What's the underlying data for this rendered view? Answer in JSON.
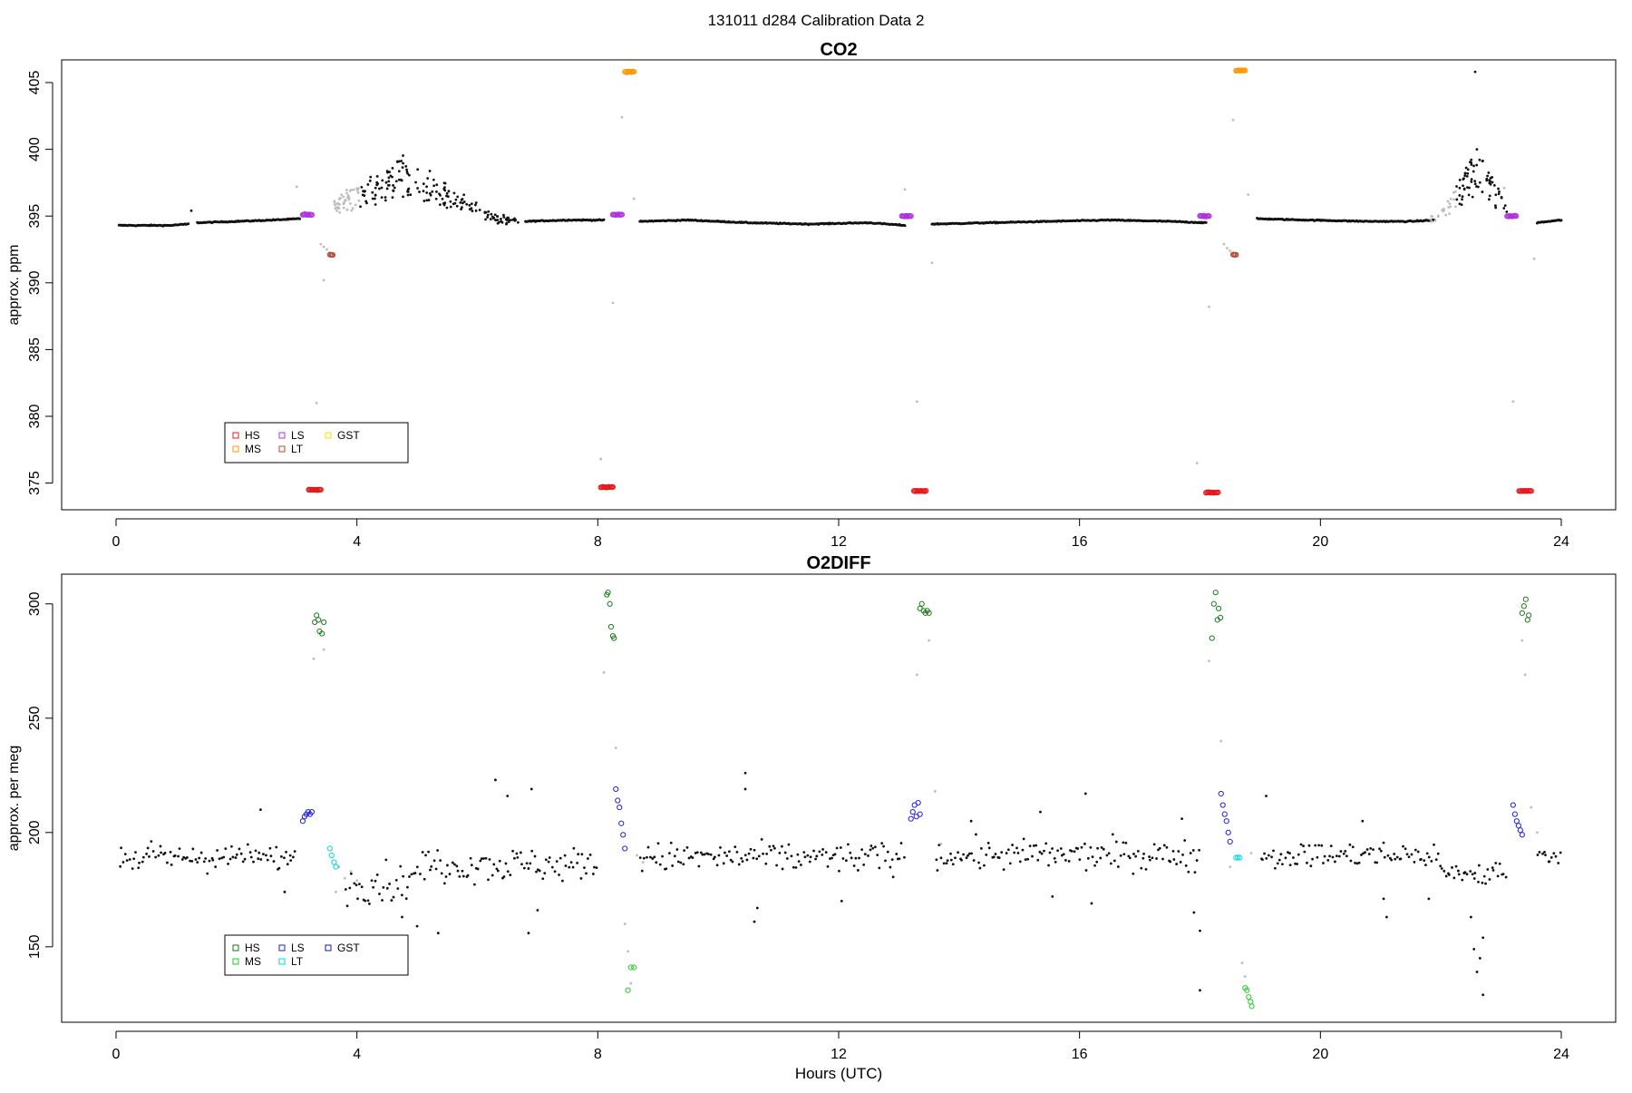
{
  "figure_title": "131011   d284   Calibration Data 2",
  "colors": {
    "HS": "#e41a1c",
    "MS": "#ff9900",
    "LS": "#b030e0",
    "LT": "#b84a3a",
    "GST": "#ffdd00",
    "O2_HS": "#1a7a1a",
    "O2_MS": "#22cc22",
    "O2_LS": "#1f1fdd",
    "O2_LT": "#00d8d8",
    "O2_GST": "#1a1aaa",
    "sample": "#111111",
    "flagged": "#bdbdbd"
  },
  "chart_data": [
    {
      "id": "co2",
      "type": "scatter",
      "title": "CO2",
      "xlabel": "",
      "ylabel": "approx. ppm",
      "xlim": [
        0,
        24
      ],
      "ylim": [
        373,
        406
      ],
      "xticks": [
        0,
        4,
        8,
        12,
        16,
        20,
        24
      ],
      "yticks": [
        375,
        380,
        385,
        390,
        395,
        400,
        405
      ],
      "grid": false,
      "legend": {
        "placement": "bottom-left",
        "entries": [
          {
            "label": "HS",
            "key": "HS"
          },
          {
            "label": "MS",
            "key": "MS"
          },
          {
            "label": "LS",
            "key": "LS"
          },
          {
            "label": "LT",
            "key": "LT"
          },
          {
            "label": "GST",
            "key": "GST"
          }
        ]
      },
      "baseline_segments": [
        {
          "x": [
            0.05,
            0.5,
            0.9,
            1.2
          ],
          "y": [
            394.3,
            394.3,
            394.3,
            394.4
          ]
        },
        {
          "x": [
            1.35,
            2.0,
            2.6,
            3.05
          ],
          "y": [
            394.5,
            394.6,
            394.7,
            394.8
          ]
        },
        {
          "x": [
            6.8,
            7.5,
            8.1
          ],
          "y": [
            394.6,
            394.7,
            394.7
          ]
        },
        {
          "x": [
            8.7,
            9.5,
            10.5,
            11.5,
            12.5,
            13.1
          ],
          "y": [
            394.6,
            394.7,
            394.5,
            394.4,
            394.5,
            394.3
          ]
        },
        {
          "x": [
            13.55,
            14.5,
            15.5,
            16.5,
            17.5,
            18.1
          ],
          "y": [
            394.4,
            394.5,
            394.6,
            394.7,
            394.6,
            394.5
          ]
        },
        {
          "x": [
            18.95,
            19.8,
            20.8,
            21.5,
            21.9
          ],
          "y": [
            394.8,
            394.7,
            394.6,
            394.6,
            394.7
          ]
        },
        {
          "x": [
            23.6,
            24.0
          ],
          "y": [
            394.5,
            394.7
          ]
        }
      ],
      "scatter_regions": [
        {
          "x0": 3.6,
          "x1": 6.7,
          "kind": "excursion",
          "peak_x": 4.75,
          "peak_y": 399.5,
          "base": 394.7
        },
        {
          "x0": 21.8,
          "x1": 23.1,
          "kind": "excursion",
          "peak_x": 22.6,
          "peak_y": 400.0,
          "base": 394.8
        },
        {
          "x0": 1.25,
          "x1": 1.3,
          "kind": "spike",
          "peak_x": 1.25,
          "peak_y": 395.4,
          "base": 394.5
        },
        {
          "x0": 22.55,
          "x1": 22.6,
          "kind": "spike",
          "peak_x": 22.57,
          "peak_y": 405.8,
          "base": 394.8
        }
      ],
      "calibrations": [
        {
          "key": "HS",
          "x0": 3.2,
          "x1": 3.4,
          "y": 374.5
        },
        {
          "key": "HS",
          "x0": 8.05,
          "x1": 8.25,
          "y": 374.7
        },
        {
          "key": "HS",
          "x0": 13.25,
          "x1": 13.45,
          "y": 374.4
        },
        {
          "key": "HS",
          "x0": 18.1,
          "x1": 18.3,
          "y": 374.3
        },
        {
          "key": "HS",
          "x0": 23.3,
          "x1": 23.5,
          "y": 374.4
        },
        {
          "key": "MS",
          "x0": 8.45,
          "x1": 8.6,
          "y": 405.8
        },
        {
          "key": "MS",
          "x0": 18.6,
          "x1": 18.75,
          "y": 405.9
        },
        {
          "key": "LS",
          "x0": 3.1,
          "x1": 3.25,
          "y": 395.1
        },
        {
          "key": "LS",
          "x0": 8.25,
          "x1": 8.4,
          "y": 395.1
        },
        {
          "key": "LS",
          "x0": 13.05,
          "x1": 13.2,
          "y": 395.0
        },
        {
          "key": "LS",
          "x0": 18.0,
          "x1": 18.15,
          "y": 395.0
        },
        {
          "key": "LS",
          "x0": 23.1,
          "x1": 23.25,
          "y": 395.0
        },
        {
          "key": "LT",
          "x0": 3.55,
          "x1": 3.6,
          "y": 392.1
        },
        {
          "key": "LT",
          "x0": 18.55,
          "x1": 18.6,
          "y": 392.1
        }
      ],
      "flagged": [
        {
          "x": 3.0,
          "y": 397.2
        },
        {
          "x": 3.33,
          "y": 381.0
        },
        {
          "x": 3.45,
          "y": 390.2
        },
        {
          "x": 3.4,
          "y": 392.9
        },
        {
          "x": 3.45,
          "y": 392.7
        },
        {
          "x": 3.5,
          "y": 392.5
        },
        {
          "x": 8.05,
          "y": 376.8
        },
        {
          "x": 8.25,
          "y": 388.5
        },
        {
          "x": 8.4,
          "y": 402.4
        },
        {
          "x": 8.6,
          "y": 396.3
        },
        {
          "x": 13.1,
          "y": 397.0
        },
        {
          "x": 13.3,
          "y": 381.1
        },
        {
          "x": 13.55,
          "y": 391.5
        },
        {
          "x": 17.95,
          "y": 376.5
        },
        {
          "x": 18.15,
          "y": 388.2
        },
        {
          "x": 18.4,
          "y": 392.9
        },
        {
          "x": 18.45,
          "y": 392.6
        },
        {
          "x": 18.5,
          "y": 392.4
        },
        {
          "x": 18.55,
          "y": 402.2
        },
        {
          "x": 18.8,
          "y": 396.6
        },
        {
          "x": 23.05,
          "y": 397.1
        },
        {
          "x": 23.2,
          "y": 381.1
        },
        {
          "x": 23.55,
          "y": 391.8
        }
      ]
    },
    {
      "id": "o2diff",
      "type": "scatter",
      "title": "O2DIFF",
      "xlabel": "Hours (UTC)",
      "ylabel": "approx. per meg",
      "xlim": [
        0,
        24
      ],
      "ylim": [
        120,
        310
      ],
      "xticks": [
        0,
        4,
        8,
        12,
        16,
        20,
        24
      ],
      "yticks": [
        150,
        200,
        250,
        300
      ],
      "grid": false,
      "legend": {
        "placement": "bottom-left",
        "entries": [
          {
            "label": "HS",
            "key": "O2_HS"
          },
          {
            "label": "MS",
            "key": "O2_MS"
          },
          {
            "label": "LS",
            "key": "O2_LS"
          },
          {
            "label": "LT",
            "key": "O2_LT"
          },
          {
            "label": "GST",
            "key": "O2_GST"
          }
        ]
      },
      "noise_segments": [
        {
          "x0": 0.05,
          "x1": 3.0,
          "center": 189,
          "spread": 6
        },
        {
          "x0": 3.8,
          "x1": 5.0,
          "center": 178,
          "spread": 9
        },
        {
          "x0": 5.0,
          "x1": 8.0,
          "center": 186,
          "spread": 8
        },
        {
          "x0": 8.7,
          "x1": 13.1,
          "center": 189,
          "spread": 7
        },
        {
          "x0": 13.6,
          "x1": 18.0,
          "center": 190,
          "spread": 7
        },
        {
          "x0": 19.0,
          "x1": 22.0,
          "center": 190,
          "spread": 6
        },
        {
          "x0": 22.0,
          "x1": 23.1,
          "center": 182,
          "spread": 6
        },
        {
          "x0": 23.6,
          "x1": 24.0,
          "center": 190,
          "spread": 4
        }
      ],
      "outliers": [
        {
          "x": 2.4,
          "y": 210
        },
        {
          "x": 2.8,
          "y": 174
        },
        {
          "x": 6.3,
          "y": 223
        },
        {
          "x": 6.5,
          "y": 216
        },
        {
          "x": 6.85,
          "y": 156
        },
        {
          "x": 6.9,
          "y": 219
        },
        {
          "x": 7.0,
          "y": 166
        },
        {
          "x": 5.0,
          "y": 159
        },
        {
          "x": 5.35,
          "y": 156
        },
        {
          "x": 4.75,
          "y": 163
        },
        {
          "x": 10.45,
          "y": 226
        },
        {
          "x": 10.45,
          "y": 219
        },
        {
          "x": 10.6,
          "y": 161
        },
        {
          "x": 10.65,
          "y": 167
        },
        {
          "x": 12.05,
          "y": 170
        },
        {
          "x": 15.35,
          "y": 209
        },
        {
          "x": 15.55,
          "y": 172
        },
        {
          "x": 16.1,
          "y": 217
        },
        {
          "x": 16.2,
          "y": 169
        },
        {
          "x": 14.2,
          "y": 205
        },
        {
          "x": 17.7,
          "y": 206
        },
        {
          "x": 18.0,
          "y": 157
        },
        {
          "x": 18.0,
          "y": 131
        },
        {
          "x": 17.9,
          "y": 165
        },
        {
          "x": 19.1,
          "y": 216
        },
        {
          "x": 21.05,
          "y": 171
        },
        {
          "x": 21.1,
          "y": 163
        },
        {
          "x": 21.8,
          "y": 171
        },
        {
          "x": 22.5,
          "y": 163
        },
        {
          "x": 22.55,
          "y": 149
        },
        {
          "x": 22.6,
          "y": 139
        },
        {
          "x": 22.65,
          "y": 145
        },
        {
          "x": 22.7,
          "y": 129
        },
        {
          "x": 22.7,
          "y": 154
        },
        {
          "x": 20.7,
          "y": 205
        }
      ],
      "calibrations": [
        {
          "key": "O2_HS",
          "x": [
            3.3,
            3.33,
            3.36,
            3.38,
            3.42,
            3.45
          ],
          "y": [
            292,
            295,
            293,
            288,
            287,
            292
          ]
        },
        {
          "key": "O2_HS",
          "x": [
            8.15,
            8.17,
            8.2,
            8.22,
            8.25,
            8.27
          ],
          "y": [
            304,
            305,
            300,
            290,
            286,
            285
          ]
        },
        {
          "key": "O2_HS",
          "x": [
            13.35,
            13.38,
            13.41,
            13.44,
            13.47,
            13.5
          ],
          "y": [
            298,
            300,
            297,
            296,
            297,
            296
          ]
        },
        {
          "key": "O2_HS",
          "x": [
            18.2,
            18.23,
            18.26,
            18.29,
            18.31,
            18.34
          ],
          "y": [
            285,
            300,
            305,
            293,
            298,
            294
          ]
        },
        {
          "key": "O2_HS",
          "x": [
            23.35,
            23.38,
            23.41,
            23.44,
            23.46
          ],
          "y": [
            296,
            299,
            302,
            293,
            295
          ]
        },
        {
          "key": "O2_MS",
          "x": [
            8.5,
            8.55,
            8.6
          ],
          "y": [
            131,
            141,
            141
          ]
        },
        {
          "key": "O2_MS",
          "x": [
            18.75,
            18.78,
            18.81,
            18.84,
            18.86
          ],
          "y": [
            132,
            131,
            128,
            126,
            124
          ]
        },
        {
          "key": "O2_LS",
          "x": [
            3.1,
            3.13,
            3.16,
            3.19,
            3.22,
            3.25
          ],
          "y": [
            205,
            207,
            208,
            209,
            208,
            209
          ]
        },
        {
          "key": "O2_LS",
          "x": [
            8.3,
            8.33,
            8.36,
            8.39,
            8.42,
            8.45
          ],
          "y": [
            219,
            214,
            211,
            204,
            199,
            193
          ]
        },
        {
          "key": "O2_LS",
          "x": [
            13.2,
            13.23,
            13.26,
            13.29,
            13.32,
            13.35
          ],
          "y": [
            206,
            209,
            212,
            207,
            213,
            208
          ]
        },
        {
          "key": "O2_LS",
          "x": [
            18.35,
            18.38,
            18.41,
            18.44,
            18.47,
            18.5
          ],
          "y": [
            217,
            212,
            208,
            205,
            200,
            196
          ]
        },
        {
          "key": "O2_LS",
          "x": [
            23.2,
            23.23,
            23.26,
            23.29,
            23.32,
            23.35
          ],
          "y": [
            212,
            208,
            205,
            203,
            201,
            199
          ]
        },
        {
          "key": "O2_LT",
          "x": [
            3.55,
            3.58,
            3.62,
            3.65
          ],
          "y": [
            193,
            190,
            187,
            185
          ]
        },
        {
          "key": "O2_LT",
          "x": [
            18.6,
            18.63,
            18.66
          ],
          "y": [
            189,
            189,
            189
          ]
        }
      ],
      "flagged": [
        {
          "x": 3.28,
          "y": 276
        },
        {
          "x": 3.45,
          "y": 280
        },
        {
          "x": 3.7,
          "y": 185
        },
        {
          "x": 3.8,
          "y": 180
        },
        {
          "x": 3.9,
          "y": 183
        },
        {
          "x": 4.0,
          "y": 179
        },
        {
          "x": 3.65,
          "y": 174
        },
        {
          "x": 8.1,
          "y": 270
        },
        {
          "x": 8.3,
          "y": 237
        },
        {
          "x": 8.45,
          "y": 160
        },
        {
          "x": 8.5,
          "y": 148
        },
        {
          "x": 8.55,
          "y": 134
        },
        {
          "x": 8.65,
          "y": 190
        },
        {
          "x": 8.75,
          "y": 187
        },
        {
          "x": 13.3,
          "y": 269
        },
        {
          "x": 13.5,
          "y": 284
        },
        {
          "x": 13.6,
          "y": 218
        },
        {
          "x": 13.7,
          "y": 195
        },
        {
          "x": 18.15,
          "y": 275
        },
        {
          "x": 18.35,
          "y": 240
        },
        {
          "x": 18.5,
          "y": 185
        },
        {
          "x": 18.7,
          "y": 143
        },
        {
          "x": 18.75,
          "y": 137
        },
        {
          "x": 18.85,
          "y": 191
        },
        {
          "x": 23.35,
          "y": 284
        },
        {
          "x": 23.4,
          "y": 269
        },
        {
          "x": 23.5,
          "y": 211
        },
        {
          "x": 23.6,
          "y": 200
        }
      ]
    }
  ]
}
